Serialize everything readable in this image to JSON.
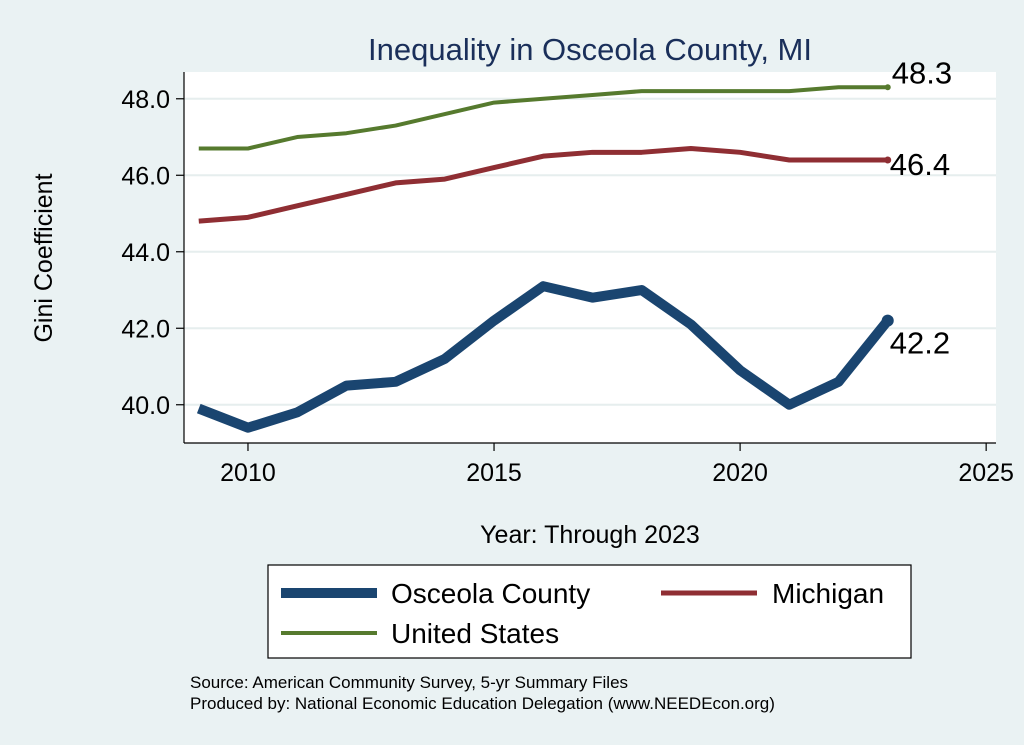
{
  "chart_data": {
    "type": "line",
    "title": "Inequality in Osceola County, MI",
    "xlabel": "Year: Through 2023",
    "ylabel": "Gini Coefficient",
    "xlim": [
      2008.7,
      2025.2
    ],
    "ylim": [
      39.0,
      48.7
    ],
    "xticks": [
      2010,
      2015,
      2020,
      2025
    ],
    "yticks": [
      40.0,
      42.0,
      44.0,
      46.0,
      48.0
    ],
    "ytick_labels": [
      "40.0",
      "42.0",
      "44.0",
      "46.0",
      "48.0"
    ],
    "grid": true,
    "legend_position": "bottom",
    "x": [
      2009,
      2010,
      2011,
      2012,
      2013,
      2014,
      2015,
      2016,
      2017,
      2018,
      2019,
      2020,
      2021,
      2022,
      2023
    ],
    "series": [
      {
        "name": "Osceola County",
        "color": "#1a4570",
        "values": [
          39.9,
          39.4,
          39.8,
          40.5,
          40.6,
          41.2,
          42.2,
          43.1,
          42.8,
          43.0,
          42.1,
          40.9,
          40.0,
          40.6,
          42.2
        ],
        "end_label": "42.2"
      },
      {
        "name": "Michigan",
        "color": "#8f2e33",
        "values": [
          44.8,
          44.9,
          45.2,
          45.5,
          45.8,
          45.9,
          46.2,
          46.5,
          46.6,
          46.6,
          46.7,
          46.6,
          46.4,
          46.4,
          46.4
        ],
        "end_label": "46.4"
      },
      {
        "name": "United States",
        "color": "#567a2e",
        "values": [
          46.7,
          46.7,
          47.0,
          47.1,
          47.3,
          47.6,
          47.9,
          48.0,
          48.1,
          48.2,
          48.2,
          48.2,
          48.2,
          48.3,
          48.3
        ],
        "end_label": "48.3"
      }
    ]
  },
  "source_line": "Source: American Community Survey, 5-yr Summary Files",
  "produced_line": "Produced by: National Economic Education Delegation (www.NEEDEcon.org)"
}
